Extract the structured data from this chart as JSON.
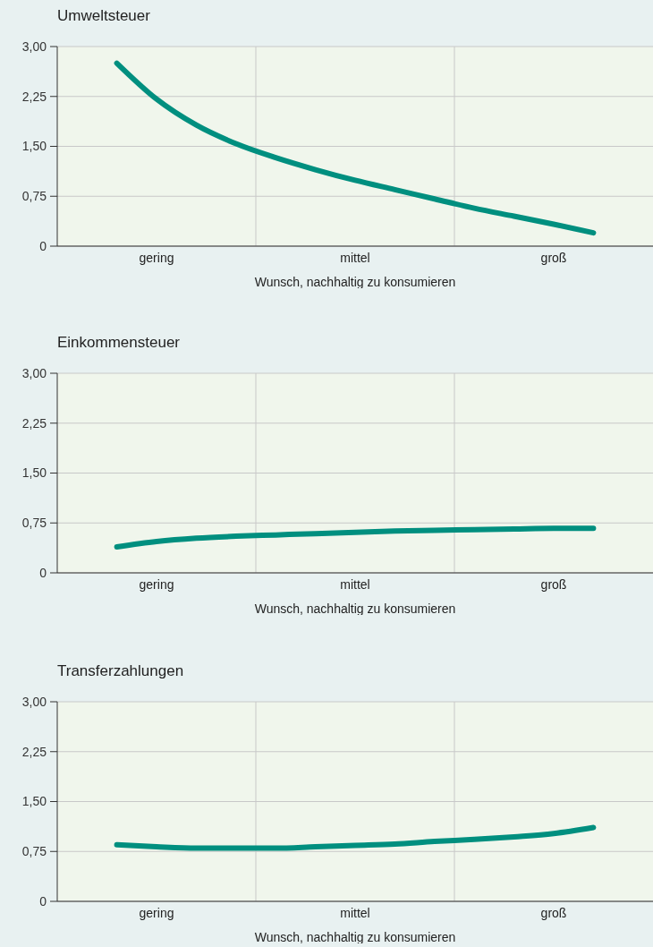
{
  "chart_data": [
    {
      "type": "line",
      "title": "Umweltsteuer",
      "xlabel": "Wunsch, nachhaltig zu konsumieren",
      "color": "#008f7f",
      "categories": [
        null,
        null,
        "gering",
        null,
        null,
        null,
        null,
        "mittel",
        null,
        null,
        null,
        null,
        "groß",
        null,
        null
      ],
      "values": [
        null,
        2.75,
        2.21,
        1.82,
        1.54,
        1.33,
        1.15,
        0.99,
        0.85,
        0.71,
        0.57,
        0.45,
        0.33,
        0.2,
        null
      ],
      "ylim": [
        0,
        3
      ],
      "yticks": [
        {
          "value": 0,
          "label": "0"
        },
        {
          "value": 0.75,
          "label": "0,75"
        },
        {
          "value": 1.5,
          "label": "1,50"
        },
        {
          "value": 2.25,
          "label": "2,25"
        },
        {
          "value": 3,
          "label": "3,00"
        }
      ],
      "grid": true
    },
    {
      "type": "line",
      "title": "Einkommensteuer",
      "xlabel": "Wunsch, nachhaltig zu konsumieren",
      "color": "#008f7f",
      "categories": [
        null,
        null,
        "gering",
        null,
        null,
        null,
        null,
        "mittel",
        null,
        null,
        null,
        null,
        "groß",
        null,
        null
      ],
      "values": [
        null,
        0.39,
        0.47,
        0.52,
        0.55,
        0.57,
        0.59,
        0.61,
        0.63,
        0.64,
        0.65,
        0.66,
        0.67,
        0.67,
        null
      ],
      "ylim": [
        0,
        3
      ],
      "yticks": [
        {
          "value": 0,
          "label": "0"
        },
        {
          "value": 0.75,
          "label": "0,75"
        },
        {
          "value": 1.5,
          "label": "1,50"
        },
        {
          "value": 2.25,
          "label": "2,25"
        },
        {
          "value": 3,
          "label": "3,00"
        }
      ],
      "grid": true
    },
    {
      "type": "line",
      "title": "Transferzahlungen",
      "xlabel": "Wunsch, nachhaltig zu konsumieren",
      "color": "#008f7f",
      "categories": [
        null,
        null,
        "gering",
        null,
        null,
        null,
        null,
        "mittel",
        null,
        null,
        null,
        null,
        "groß",
        null,
        null
      ],
      "values": [
        null,
        0.85,
        0.82,
        0.8,
        0.8,
        0.8,
        0.82,
        0.84,
        0.86,
        0.9,
        0.93,
        0.97,
        1.02,
        1.11,
        null
      ],
      "ylim": [
        0,
        3
      ],
      "yticks": [
        {
          "value": 0,
          "label": "0"
        },
        {
          "value": 0.75,
          "label": "0,75"
        },
        {
          "value": 1.5,
          "label": "1,50"
        },
        {
          "value": 2.25,
          "label": "2,25"
        },
        {
          "value": 3,
          "label": "3,00"
        }
      ],
      "grid": true
    }
  ]
}
